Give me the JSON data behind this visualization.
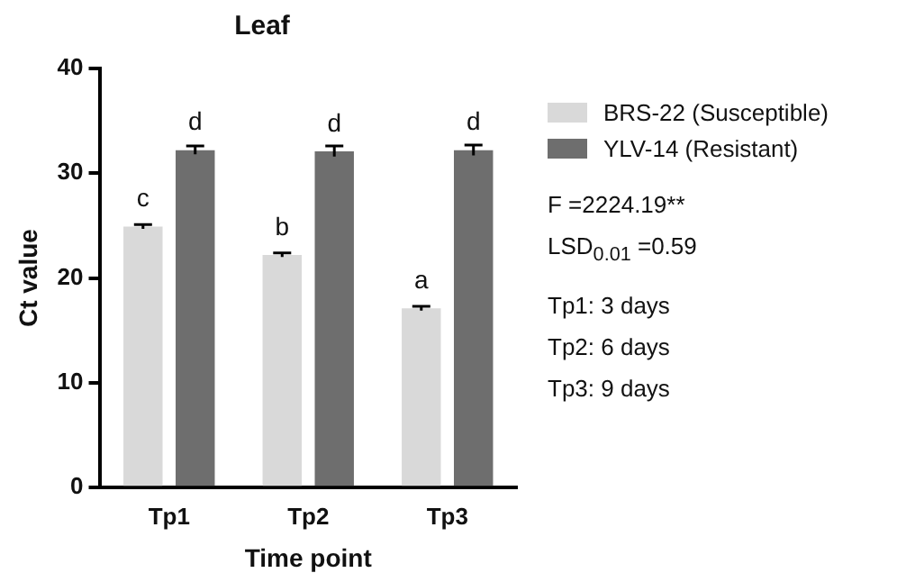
{
  "chart_data": {
    "type": "bar",
    "title": "Leaf",
    "xlabel": "Time point",
    "ylabel": "Ct value",
    "categories": [
      "Tp1",
      "Tp2",
      "Tp3"
    ],
    "series": [
      {
        "name": "BRS-22 (Susceptible)",
        "color": "#d9d9d9",
        "values": [
          24.9,
          22.2,
          17.1
        ],
        "errors": [
          0.2,
          0.2,
          0.2
        ]
      },
      {
        "name": "YLV-14 (Resistant)",
        "color": "#6e6e6e",
        "values": [
          32.2,
          32.1,
          32.2
        ],
        "errors": [
          0.4,
          0.5,
          0.5
        ]
      }
    ],
    "ylim": [
      0,
      40
    ],
    "yticks": [
      0,
      10,
      20,
      30,
      40
    ],
    "grid": false,
    "legend": "right",
    "annotations": [
      {
        "text": "c",
        "x": "Tp1",
        "y": 24.9
      },
      {
        "text": "d",
        "x": "Tp1",
        "y": 32.2
      },
      {
        "text": "b",
        "x": "Tp2",
        "y": 22.2
      },
      {
        "text": "d",
        "x": "Tp2",
        "y": 32.1
      },
      {
        "text": "a",
        "x": "Tp3",
        "y": 17.1
      },
      {
        "text": "d",
        "x": "Tp3",
        "y": 32.2
      },
      "F =2224.19**",
      "LSD$_{0.01}$ =0.59",
      "Tp1: 3 days",
      "Tp2: 6 days",
      "Tp3: 9 days"
    ]
  }
}
